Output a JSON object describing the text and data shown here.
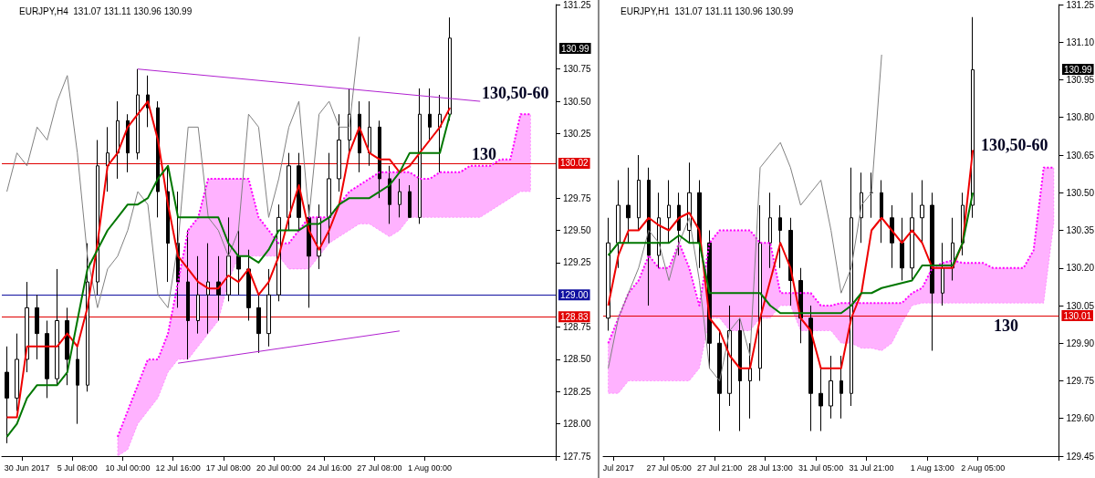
{
  "chart_data": [
    {
      "type": "candlestick",
      "title": "EURJPY,H4  131.07 131.11 130.96 130.99",
      "color": "#000000",
      "marker": "none",
      "grid": false,
      "categories": [
        null,
        null,
        "30 Jun 2017",
        null,
        null,
        null,
        null,
        "5 Jul 08:00",
        null,
        null,
        null,
        null,
        "10 Jul 00:00",
        null,
        null,
        null,
        null,
        "12 Jul 16:00",
        null,
        null,
        null,
        null,
        "17 Jul 08:00",
        null,
        null,
        null,
        null,
        "20 Jul 00:00",
        null,
        null,
        null,
        null,
        "24 Jul 16:00",
        null,
        null,
        null,
        null,
        "27 Jul 08:00",
        null,
        null,
        null,
        null,
        "1 Aug 00:00",
        null,
        null,
        null,
        null,
        null,
        null,
        null,
        null,
        null,
        null,
        null,
        null
      ],
      "ohlc": [
        [
          128.4,
          128.6,
          127.85,
          128.2
        ],
        [
          128.2,
          128.7,
          128.1,
          128.5
        ],
        [
          128.5,
          129.1,
          128.4,
          128.9
        ],
        [
          128.9,
          129.0,
          128.5,
          128.7
        ],
        [
          128.7,
          128.8,
          128.2,
          128.35
        ],
        [
          128.35,
          129.2,
          128.3,
          128.8
        ],
        [
          128.8,
          128.9,
          128.3,
          128.5
        ],
        [
          128.5,
          128.6,
          128.0,
          128.3
        ],
        [
          128.3,
          129.4,
          128.25,
          129.1
        ],
        [
          129.1,
          130.2,
          129.0,
          130.0
        ],
        [
          130.0,
          130.3,
          129.8,
          130.1
        ],
        [
          130.1,
          130.5,
          129.9,
          130.35
        ],
        [
          130.35,
          130.4,
          129.95,
          130.1
        ],
        [
          130.1,
          130.75,
          130.05,
          130.55
        ],
        [
          130.55,
          130.7,
          130.3,
          130.45
        ],
        [
          130.45,
          130.5,
          129.6,
          129.8
        ],
        [
          129.8,
          130.0,
          129.1,
          129.4
        ],
        [
          129.4,
          129.8,
          128.9,
          129.1
        ],
        [
          129.1,
          129.5,
          128.5,
          128.8
        ],
        [
          128.8,
          129.3,
          128.7,
          129.0
        ],
        [
          129.0,
          129.4,
          128.7,
          129.1
        ],
        [
          129.1,
          129.3,
          128.8,
          129.0
        ],
        [
          129.0,
          129.6,
          128.95,
          129.3
        ],
        [
          129.3,
          129.5,
          129.0,
          129.2
        ],
        [
          129.2,
          129.35,
          128.8,
          128.9
        ],
        [
          128.9,
          129.0,
          128.55,
          128.7
        ],
        [
          128.7,
          129.2,
          128.6,
          129.0
        ],
        [
          129.0,
          129.7,
          128.95,
          129.6
        ],
        [
          129.6,
          130.1,
          129.5,
          130.0
        ],
        [
          130.0,
          130.1,
          129.5,
          129.6
        ],
        [
          129.6,
          129.7,
          128.9,
          129.3
        ],
        [
          129.3,
          129.7,
          129.2,
          129.6
        ],
        [
          129.6,
          130.1,
          129.4,
          129.9
        ],
        [
          129.9,
          130.4,
          129.8,
          130.2
        ],
        [
          130.2,
          130.6,
          130.1,
          130.4
        ],
        [
          130.4,
          130.5,
          129.95,
          130.1
        ],
        [
          130.1,
          130.5,
          130.0,
          130.3
        ],
        [
          130.3,
          130.35,
          129.75,
          129.9
        ],
        [
          129.9,
          130.0,
          129.55,
          129.7
        ],
        [
          129.7,
          129.9,
          129.6,
          129.8
        ],
        [
          129.8,
          129.85,
          129.6,
          129.6
        ],
        [
          129.6,
          130.6,
          129.55,
          130.4
        ],
        [
          130.4,
          130.6,
          130.2,
          130.3
        ],
        [
          130.3,
          130.55,
          129.95,
          130.4
        ],
        [
          130.4,
          131.15,
          130.35,
          130.99
        ],
        null,
        null,
        null,
        null,
        null,
        null,
        null,
        null,
        null,
        null
      ],
      "series": [
        {
          "type": "line",
          "color": "#ff00ff",
          "line_style": "dotted",
          "values": [
            null,
            null,
            null,
            null,
            null,
            null,
            null,
            null,
            null,
            null,
            null,
            127.9,
            128.1,
            128.3,
            128.5,
            128.5,
            128.7,
            129.1,
            129.5,
            129.6,
            129.9,
            129.9,
            129.9,
            129.9,
            129.9,
            129.6,
            129.5,
            129.4,
            129.4,
            129.5,
            129.6,
            129.6,
            129.6,
            129.7,
            129.8,
            129.85,
            129.9,
            129.95,
            129.95,
            129.95,
            129.95,
            129.9,
            129.9,
            129.95,
            129.95,
            129.95,
            130.0,
            130.0,
            130.0,
            130.05,
            130.05,
            130.4,
            130.4,
            null,
            null
          ],
          "lower": [
            null,
            null,
            null,
            null,
            null,
            null,
            null,
            null,
            null,
            null,
            null,
            127.75,
            127.8,
            128.0,
            128.1,
            128.2,
            128.4,
            128.5,
            128.5,
            128.6,
            128.7,
            128.8,
            129.1,
            129.3,
            129.3,
            129.3,
            129.3,
            129.3,
            129.2,
            129.2,
            129.2,
            129.3,
            129.4,
            129.45,
            129.5,
            129.55,
            129.55,
            129.5,
            129.45,
            129.5,
            129.6,
            129.6,
            129.6,
            129.6,
            129.6,
            129.6,
            129.6,
            129.6,
            129.65,
            129.7,
            129.75,
            129.8,
            129.8,
            null,
            null
          ],
          "upper": [
            null,
            null,
            null,
            null,
            null,
            null,
            null,
            null,
            null,
            null,
            null,
            127.9,
            128.1,
            128.3,
            128.5,
            128.5,
            128.7,
            129.1,
            129.5,
            129.6,
            129.9,
            129.9,
            129.9,
            129.9,
            129.9,
            129.6,
            129.5,
            129.4,
            129.4,
            129.5,
            129.6,
            129.6,
            129.6,
            129.7,
            129.8,
            129.85,
            129.9,
            129.95,
            129.95,
            129.95,
            129.95,
            129.9,
            129.9,
            129.95,
            129.95,
            129.95,
            130.0,
            130.0,
            130.0,
            130.05,
            130.05,
            130.4,
            130.4,
            null,
            null
          ]
        },
        {
          "type": "line",
          "color": "#808080",
          "values": [
            129.8,
            130.1,
            130.0,
            130.3,
            130.2,
            130.5,
            130.7,
            130.1,
            129.3,
            128.9,
            129.2,
            129.3,
            129.5,
            129.8,
            129.7,
            129.0,
            128.9,
            129.4,
            130.3,
            130.3,
            129.6,
            129.5,
            129.3,
            129.5,
            130.4,
            130.3,
            129.6,
            129.9,
            130.3,
            130.5,
            129.6,
            130.4,
            130.5,
            130.3,
            130.3,
            131.0,
            null,
            null,
            null,
            null,
            null,
            null,
            null,
            null,
            null,
            null,
            null,
            null,
            null,
            null,
            null,
            null,
            null,
            null,
            null
          ]
        },
        {
          "type": "line",
          "color": "#ee0000",
          "values": [
            128.05,
            128.05,
            128.6,
            128.6,
            128.6,
            128.6,
            128.7,
            128.6,
            128.9,
            129.4,
            130.0,
            130.1,
            130.3,
            130.4,
            130.5,
            130.2,
            129.7,
            129.3,
            129.2,
            129.1,
            129.05,
            129.05,
            129.15,
            129.1,
            129.2,
            129.0,
            129.1,
            129.3,
            129.6,
            129.85,
            129.5,
            129.35,
            129.5,
            129.7,
            130.1,
            130.3,
            130.1,
            130.05,
            130.05,
            129.95,
            130.0,
            130.1,
            130.2,
            130.3,
            130.45,
            null,
            null,
            null,
            null,
            null,
            null,
            null,
            null,
            null,
            null
          ]
        },
        {
          "type": "line",
          "color": "#007700",
          "values": [
            127.9,
            128.0,
            128.2,
            128.3,
            128.3,
            128.3,
            128.4,
            128.8,
            129.2,
            129.35,
            129.5,
            129.6,
            129.7,
            129.7,
            129.75,
            129.9,
            130.0,
            129.6,
            129.6,
            129.6,
            129.6,
            129.6,
            129.4,
            129.3,
            129.3,
            129.25,
            129.35,
            129.5,
            129.5,
            129.5,
            129.55,
            129.55,
            129.6,
            129.7,
            129.75,
            129.75,
            129.75,
            129.8,
            129.85,
            129.95,
            130.1,
            130.1,
            130.1,
            130.1,
            130.4,
            null,
            null,
            null,
            null,
            null,
            null,
            null,
            null,
            null,
            null
          ]
        },
        {
          "type": "line",
          "color": "#b020d0",
          "values": [
            null,
            null,
            null,
            null,
            null,
            null,
            null,
            null,
            null,
            null,
            null,
            null,
            null,
            130.75,
            null,
            null,
            null,
            null,
            null,
            null,
            null,
            null,
            null,
            null,
            null,
            null,
            null,
            null,
            null,
            null,
            null,
            null,
            null,
            null,
            null,
            null,
            null,
            null,
            null,
            null,
            null,
            null,
            null,
            null,
            null,
            null,
            null,
            130.5,
            null,
            null,
            null,
            null,
            null,
            null,
            null
          ]
        },
        {
          "type": "line",
          "color": "#b020d0",
          "values": [
            null,
            null,
            null,
            null,
            null,
            null,
            null,
            null,
            null,
            null,
            null,
            null,
            null,
            null,
            null,
            null,
            null,
            128.47,
            null,
            null,
            null,
            null,
            null,
            null,
            null,
            null,
            null,
            null,
            null,
            null,
            null,
            null,
            null,
            null,
            null,
            null,
            null,
            null,
            null,
            128.72,
            null,
            null,
            null,
            null,
            null,
            null,
            null,
            null,
            null,
            null,
            null,
            null,
            null,
            null,
            null
          ]
        }
      ],
      "ylim": [
        127.75,
        131.25
      ],
      "yticks": [
        127.75,
        {
          "value": 128,
          "label": "128.00"
        },
        128.25,
        {
          "value": 128.5,
          "label": "128.50"
        },
        128.75,
        129.25,
        {
          "value": 129.5,
          "label": "129.50"
        },
        129.75,
        130.25,
        {
          "value": 130.5,
          "label": "130.50"
        },
        130.75,
        131.25
      ],
      "ref_lines": [
        {
          "axis": "y",
          "value": 130.02,
          "label": "130.02",
          "color": "#e00000"
        },
        {
          "axis": "y",
          "value": 129.0,
          "label": "129.00",
          "color": "#1010a0"
        },
        {
          "axis": "y",
          "value": 128.83,
          "label": "128.83",
          "color": "#e00000"
        }
      ],
      "annotations": [
        "130,50-60",
        "130",
        "130.99"
      ]
    },
    {
      "type": "candlestick",
      "title": "EURJPY,H1  131.07 131.11 130.96 130.99",
      "color": "#000000",
      "marker": "none",
      "grid": false,
      "categories": [
        null,
        "Jul 2017",
        null,
        null,
        null,
        null,
        "27 Jul 05:00",
        null,
        null,
        null,
        null,
        "27 Jul 21:00",
        null,
        null,
        null,
        null,
        "28 Jul 13:00",
        null,
        null,
        null,
        null,
        "31 Jul 05:00",
        null,
        null,
        null,
        null,
        "31 Jul 21:00",
        null,
        null,
        null,
        null,
        null,
        "1 Aug 13:00",
        null,
        null,
        null,
        null,
        "2 Aug 05:00",
        null,
        null,
        null,
        null,
        null,
        null,
        null
      ],
      "ohlc": [
        [
          130.0,
          130.4,
          129.95,
          130.3
        ],
        [
          130.3,
          130.55,
          130.2,
          130.45
        ],
        [
          130.45,
          130.6,
          130.3,
          130.4
        ],
        [
          130.4,
          130.65,
          130.35,
          130.55
        ],
        [
          130.55,
          130.6,
          130.05,
          130.25
        ],
        [
          130.25,
          130.5,
          130.2,
          130.4
        ],
        [
          130.4,
          130.55,
          130.3,
          130.45
        ],
        [
          130.45,
          130.5,
          130.25,
          130.35
        ],
        [
          130.35,
          130.62,
          130.3,
          130.5
        ],
        [
          130.5,
          130.55,
          130.2,
          130.3
        ],
        [
          130.3,
          130.35,
          129.8,
          129.9
        ],
        [
          129.9,
          129.95,
          129.55,
          129.7
        ],
        [
          129.7,
          130.05,
          129.65,
          129.95
        ],
        [
          129.95,
          130.0,
          129.55,
          129.75
        ],
        [
          129.75,
          129.9,
          129.6,
          129.8
        ],
        [
          129.8,
          130.45,
          129.75,
          130.3
        ],
        [
          130.3,
          130.5,
          130.2,
          130.4
        ],
        [
          130.4,
          130.45,
          130.2,
          130.35
        ],
        [
          130.35,
          130.4,
          130.05,
          130.15
        ],
        [
          130.15,
          130.2,
          129.9,
          130.0
        ],
        [
          130.0,
          130.05,
          129.55,
          129.7
        ],
        [
          129.7,
          129.8,
          129.55,
          129.65
        ],
        [
          129.65,
          129.85,
          129.6,
          129.75
        ],
        [
          129.75,
          129.85,
          129.6,
          129.7
        ],
        [
          129.7,
          130.6,
          129.65,
          130.4
        ],
        [
          130.4,
          130.58,
          130.3,
          130.5
        ],
        [
          130.5,
          130.58,
          130.4,
          130.5
        ],
        [
          130.5,
          130.55,
          130.3,
          130.4
        ],
        [
          130.4,
          130.45,
          130.2,
          130.3
        ],
        [
          130.3,
          130.4,
          130.15,
          130.2
        ],
        [
          130.2,
          130.5,
          130.15,
          130.4
        ],
        [
          130.4,
          130.55,
          130.3,
          130.45
        ],
        [
          130.45,
          130.5,
          129.87,
          130.1
        ],
        [
          130.1,
          130.3,
          130.05,
          130.2
        ],
        [
          130.2,
          130.4,
          130.15,
          130.3
        ],
        [
          130.3,
          130.5,
          130.25,
          130.45
        ],
        [
          130.45,
          131.2,
          130.4,
          130.99
        ],
        null,
        null,
        null,
        null,
        null,
        null,
        null,
        null
      ],
      "series": [
        {
          "type": "line",
          "color": "#ff00ff",
          "line_style": "dotted",
          "values": [
            129.9,
            130.0,
            130.1,
            130.15,
            130.25,
            130.2,
            130.2,
            130.3,
            130.2,
            130.05,
            130.3,
            130.35,
            130.35,
            130.35,
            130.35,
            130.3,
            130.3,
            130.1,
            130.1,
            130.1,
            130.1,
            130.05,
            130.05,
            130.06,
            130.06,
            130.06,
            130.06,
            130.06,
            130.06,
            130.06,
            130.1,
            130.12,
            130.2,
            130.22,
            130.23,
            130.22,
            130.22,
            130.22,
            130.2,
            130.2,
            130.2,
            130.2,
            130.27,
            130.6,
            130.6
          ],
          "lower": [
            129.7,
            129.7,
            129.75,
            129.75,
            129.75,
            129.75,
            129.75,
            129.75,
            129.75,
            129.8,
            130.0,
            130.0,
            129.95,
            129.95,
            129.95,
            130.0,
            130.0,
            130.05,
            130.05,
            129.95,
            129.95,
            129.95,
            129.95,
            129.9,
            129.9,
            129.88,
            129.88,
            129.87,
            129.9,
            129.98,
            130.05,
            130.06,
            130.06,
            130.06,
            130.06,
            130.06,
            130.06,
            130.06,
            130.06,
            130.06,
            130.06,
            130.06,
            130.06,
            130.06,
            130.38
          ],
          "upper": [
            129.9,
            130.0,
            130.1,
            130.15,
            130.25,
            130.2,
            130.2,
            130.3,
            130.2,
            130.05,
            130.3,
            130.35,
            130.35,
            130.35,
            130.35,
            130.3,
            130.3,
            130.1,
            130.1,
            130.1,
            130.1,
            130.05,
            130.05,
            130.06,
            130.06,
            130.06,
            130.06,
            130.06,
            130.06,
            130.06,
            130.1,
            130.12,
            130.2,
            130.22,
            130.23,
            130.22,
            130.22,
            130.22,
            130.2,
            130.2,
            130.2,
            130.2,
            130.27,
            130.6,
            130.6
          ]
        },
        {
          "type": "line",
          "color": "#808080",
          "values": [
            129.8,
            130.0,
            130.1,
            130.2,
            130.35,
            130.3,
            130.15,
            130.3,
            130.4,
            130.15,
            129.8,
            129.75,
            129.95,
            130.0,
            129.85,
            130.6,
            130.65,
            130.7,
            130.6,
            130.45,
            130.5,
            130.55,
            130.35,
            130.1,
            130.2,
            130.45,
            130.5,
            131.05,
            null,
            null,
            null,
            null,
            null,
            null,
            null,
            null,
            null,
            null,
            null,
            null,
            null,
            null,
            null,
            null,
            null
          ]
        },
        {
          "type": "line",
          "color": "#ee0000",
          "values": [
            130.05,
            130.25,
            130.35,
            130.35,
            130.4,
            130.37,
            130.35,
            130.4,
            130.42,
            130.35,
            130.0,
            129.95,
            129.85,
            129.8,
            129.8,
            130.0,
            130.15,
            130.3,
            130.2,
            130.0,
            129.95,
            129.8,
            129.8,
            129.8,
            130.0,
            130.1,
            130.35,
            130.4,
            130.35,
            130.3,
            130.35,
            130.3,
            130.2,
            130.2,
            130.2,
            130.3,
            130.67,
            null,
            null,
            null,
            null,
            null,
            null,
            null,
            null
          ]
        },
        {
          "type": "line",
          "color": "#007700",
          "values": [
            130.25,
            130.3,
            130.3,
            130.3,
            130.3,
            130.3,
            130.3,
            130.33,
            130.3,
            130.3,
            130.1,
            130.1,
            130.1,
            130.1,
            130.1,
            130.1,
            130.05,
            130.02,
            130.02,
            130.02,
            130.02,
            130.02,
            130.02,
            130.02,
            130.05,
            130.1,
            130.1,
            130.12,
            130.13,
            130.14,
            130.15,
            130.21,
            130.21,
            130.21,
            130.21,
            130.3,
            130.5,
            null,
            null,
            null,
            null,
            null,
            null,
            null,
            null
          ]
        }
      ],
      "ylim": [
        129.45,
        131.25
      ],
      "yticks": [
        129.45,
        {
          "value": 129.6,
          "label": "129.60"
        },
        129.75,
        {
          "value": 129.9,
          "label": "129.90"
        },
        130.05,
        {
          "value": 130.2,
          "label": "130.20"
        },
        130.35,
        {
          "value": 130.5,
          "label": "130.50"
        },
        130.65,
        {
          "value": 130.8,
          "label": "130.80"
        },
        130.95,
        {
          "value": 131.1,
          "label": "131.10"
        },
        131.25
      ],
      "ref_lines": [
        {
          "axis": "y",
          "value": 130.01,
          "label": "130.01",
          "color": "#e00000"
        }
      ],
      "annotations": [
        "130,50-60",
        "130",
        "130.99"
      ]
    }
  ]
}
